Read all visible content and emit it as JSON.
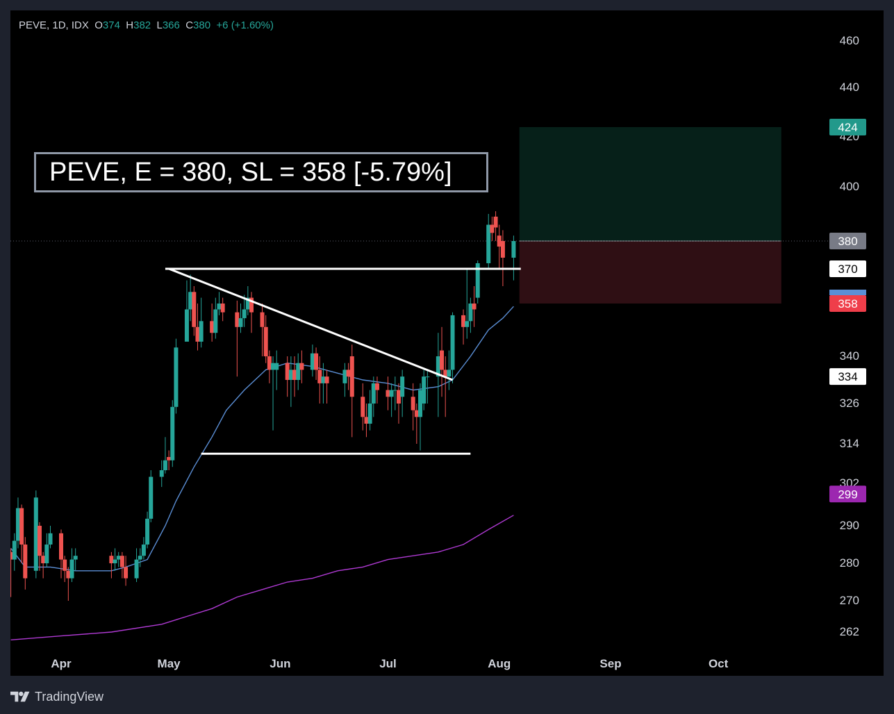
{
  "legend": {
    "symbol": "PEVE, 1D, IDX",
    "o_label": "O",
    "o": "374",
    "h_label": "H",
    "h": "382",
    "l_label": "L",
    "l": "366",
    "c_label": "C",
    "c": "380",
    "change": "+6 (+1.60%)"
  },
  "annotation": "PEVE, E = 380, SL = 358 [-5.79%]",
  "footer": {
    "brand": "TradingView",
    "logo_icon": "tradingview-logo-icon"
  },
  "colors": {
    "up": "#26a69a",
    "down": "#ef5350",
    "ma_short": "#5b8fd6",
    "ma_long": "#b03ad4",
    "target_zone": "#062019",
    "stop_zone": "#2f0f14",
    "background": "#000000"
  },
  "chart_data": {
    "type": "candlestick",
    "symbol": "PEVE",
    "interval": "1D",
    "exchange": "IDX",
    "y_axis_ticks": [
      460,
      440,
      400,
      340,
      326,
      314,
      290,
      280,
      270,
      262
    ],
    "y_axis_overlapped_ticks": [
      "420",
      "302"
    ],
    "x_axis_ticks": [
      "Apr",
      "May",
      "Jun",
      "Jul",
      "Aug",
      "Sep",
      "Oct"
    ],
    "price_labels": [
      {
        "value": "424",
        "color": "#22998b",
        "text_color": "#ffffff"
      },
      {
        "value": "380",
        "color": "#787b86",
        "text_color": "#ffffff"
      },
      {
        "value": "370",
        "color": "#ffffff",
        "text_color": "#000000"
      },
      {
        "value": "358",
        "color": "#ef3e4a",
        "text_color": "#ffffff"
      },
      {
        "value": "334",
        "color": "#ffffff",
        "text_color": "#000000"
      },
      {
        "value": "299",
        "color": "#9c27b0",
        "text_color": "#ffffff"
      }
    ],
    "entry": 380,
    "stop_loss": 358,
    "target": 424,
    "stop_loss_pct": -5.79,
    "resistance": 370,
    "support": 311,
    "descending_trendline": [
      {
        "date": "2024-05-01",
        "price": 370
      },
      {
        "date": "2024-07-19",
        "price": 333
      }
    ],
    "ma_short": [
      {
        "date": "2024-03-18",
        "price": 284
      },
      {
        "date": "2024-03-22",
        "price": 279
      },
      {
        "date": "2024-03-29",
        "price": 279
      },
      {
        "date": "2024-04-05",
        "price": 278
      },
      {
        "date": "2024-04-15",
        "price": 278
      },
      {
        "date": "2024-04-19",
        "price": 279
      },
      {
        "date": "2024-04-25",
        "price": 281
      },
      {
        "date": "2024-04-30",
        "price": 290
      },
      {
        "date": "2024-05-03",
        "price": 297
      },
      {
        "date": "2024-05-08",
        "price": 307
      },
      {
        "date": "2024-05-13",
        "price": 316
      },
      {
        "date": "2024-05-17",
        "price": 324
      },
      {
        "date": "2024-05-22",
        "price": 330
      },
      {
        "date": "2024-05-28",
        "price": 336
      },
      {
        "date": "2024-06-03",
        "price": 338
      },
      {
        "date": "2024-06-10",
        "price": 337
      },
      {
        "date": "2024-06-17",
        "price": 335
      },
      {
        "date": "2024-06-24",
        "price": 333
      },
      {
        "date": "2024-07-01",
        "price": 332
      },
      {
        "date": "2024-07-08",
        "price": 330
      },
      {
        "date": "2024-07-15",
        "price": 331
      },
      {
        "date": "2024-07-19",
        "price": 333
      },
      {
        "date": "2024-07-24",
        "price": 340
      },
      {
        "date": "2024-07-29",
        "price": 349
      },
      {
        "date": "2024-08-02",
        "price": 353
      },
      {
        "date": "2024-08-05",
        "price": 357
      }
    ],
    "ma_long": [
      {
        "date": "2024-03-18",
        "price": 260
      },
      {
        "date": "2024-04-01",
        "price": 261
      },
      {
        "date": "2024-04-15",
        "price": 262
      },
      {
        "date": "2024-04-29",
        "price": 264
      },
      {
        "date": "2024-05-06",
        "price": 266
      },
      {
        "date": "2024-05-13",
        "price": 268
      },
      {
        "date": "2024-05-20",
        "price": 271
      },
      {
        "date": "2024-05-27",
        "price": 273
      },
      {
        "date": "2024-06-03",
        "price": 275
      },
      {
        "date": "2024-06-10",
        "price": 276
      },
      {
        "date": "2024-06-17",
        "price": 278
      },
      {
        "date": "2024-06-24",
        "price": 279
      },
      {
        "date": "2024-07-01",
        "price": 281
      },
      {
        "date": "2024-07-08",
        "price": 282
      },
      {
        "date": "2024-07-15",
        "price": 283
      },
      {
        "date": "2024-07-22",
        "price": 285
      },
      {
        "date": "2024-07-29",
        "price": 289
      },
      {
        "date": "2024-08-05",
        "price": 293
      }
    ],
    "candles": [
      [
        "2024-03-18",
        283,
        281,
        284,
        271
      ],
      [
        "2024-03-19",
        281,
        286,
        288,
        278
      ],
      [
        "2024-03-20",
        286,
        295,
        298,
        284
      ],
      [
        "2024-03-21",
        295,
        285,
        296,
        280
      ],
      [
        "2024-03-22",
        285,
        276,
        287,
        273
      ],
      [
        "2024-03-25",
        278,
        298,
        300,
        276
      ],
      [
        "2024-03-26",
        290,
        282,
        291,
        278
      ],
      [
        "2024-03-27",
        282,
        280,
        283,
        276
      ],
      [
        "2024-03-28",
        280,
        285,
        288,
        279
      ],
      [
        "2024-03-29",
        285,
        288,
        290,
        284
      ],
      [
        "2024-04-01",
        288,
        281,
        289,
        276
      ],
      [
        "2024-04-02",
        281,
        278,
        282,
        275
      ],
      [
        "2024-04-03",
        278,
        276,
        279,
        270
      ],
      [
        "2024-04-04",
        276,
        281,
        284,
        275
      ],
      [
        "2024-04-05",
        281,
        282,
        284,
        278
      ],
      [
        "2024-04-15",
        282,
        280,
        283,
        276
      ],
      [
        "2024-04-16",
        280,
        281,
        284,
        278
      ],
      [
        "2024-04-17",
        281,
        282,
        283,
        279
      ],
      [
        "2024-04-18",
        282,
        279,
        283,
        276
      ],
      [
        "2024-04-19",
        279,
        276,
        282,
        274
      ],
      [
        "2024-04-22",
        276,
        281,
        284,
        275
      ],
      [
        "2024-04-23",
        281,
        282,
        284,
        279
      ],
      [
        "2024-04-24",
        282,
        285,
        287,
        281
      ],
      [
        "2024-04-25",
        285,
        292,
        294,
        284
      ],
      [
        "2024-04-26",
        292,
        304,
        306,
        291
      ],
      [
        "2024-04-29",
        304,
        306,
        309,
        301
      ],
      [
        "2024-04-30",
        306,
        309,
        316,
        305
      ],
      [
        "2024-05-01",
        310,
        309,
        312,
        306
      ],
      [
        "2024-05-02",
        309,
        325,
        327,
        307
      ],
      [
        "2024-05-03",
        325,
        343,
        346,
        323
      ],
      [
        "2024-05-06",
        345,
        356,
        366,
        348
      ],
      [
        "2024-05-07",
        356,
        362,
        368,
        352
      ],
      [
        "2024-05-08",
        362,
        350,
        364,
        347
      ],
      [
        "2024-05-09",
        350,
        345,
        358,
        342
      ],
      [
        "2024-05-10",
        345,
        352,
        360,
        343
      ],
      [
        "2024-05-13",
        352,
        348,
        358,
        345
      ],
      [
        "2024-05-14",
        348,
        356,
        360,
        346
      ],
      [
        "2024-05-15",
        356,
        358,
        362,
        354
      ],
      [
        "2024-05-16",
        358,
        355,
        360,
        352
      ],
      [
        "2024-05-20",
        355,
        350,
        359,
        334
      ],
      [
        "2024-05-21",
        350,
        353,
        358,
        348
      ],
      [
        "2024-05-22",
        353,
        356,
        361,
        350
      ],
      [
        "2024-05-23",
        356,
        360,
        364,
        354
      ],
      [
        "2024-05-24",
        360,
        355,
        362,
        348
      ],
      [
        "2024-05-27",
        355,
        350,
        358,
        340
      ],
      [
        "2024-05-28",
        350,
        340,
        354,
        338
      ],
      [
        "2024-05-29",
        340,
        336,
        342,
        332
      ],
      [
        "2024-05-30",
        336,
        338,
        340,
        318
      ],
      [
        "2024-05-31",
        336,
        338,
        342,
        330
      ],
      [
        "2024-06-03",
        338,
        333,
        340,
        328
      ],
      [
        "2024-06-04",
        333,
        336,
        340,
        325
      ],
      [
        "2024-06-05",
        336,
        333,
        340,
        328
      ],
      [
        "2024-06-06",
        333,
        338,
        341,
        330
      ],
      [
        "2024-06-07",
        338,
        336,
        342,
        332
      ],
      [
        "2024-06-10",
        336,
        341,
        344,
        334
      ],
      [
        "2024-06-11",
        341,
        336,
        343,
        333
      ],
      [
        "2024-06-12",
        336,
        332,
        340,
        326
      ],
      [
        "2024-06-13",
        332,
        334,
        338,
        326
      ],
      [
        "2024-06-14",
        334,
        332,
        336,
        326
      ],
      [
        "2024-06-19",
        332,
        336,
        338,
        328
      ],
      [
        "2024-06-20",
        336,
        334,
        338,
        330
      ],
      [
        "2024-06-21",
        340,
        328,
        344,
        316
      ],
      [
        "2024-06-24",
        328,
        322,
        332,
        318
      ],
      [
        "2024-06-25",
        322,
        320,
        326,
        316
      ],
      [
        "2024-06-26",
        320,
        326,
        330,
        318
      ],
      [
        "2024-06-27",
        326,
        332,
        334,
        322
      ],
      [
        "2024-06-28",
        332,
        330,
        334,
        326
      ],
      [
        "2024-07-01",
        330,
        328,
        334,
        324
      ],
      [
        "2024-07-02",
        328,
        330,
        332,
        322
      ],
      [
        "2024-07-03",
        330,
        330,
        334,
        324
      ],
      [
        "2024-07-04",
        330,
        326,
        332,
        320
      ],
      [
        "2024-07-05",
        328,
        334,
        336,
        322
      ],
      [
        "2024-07-08",
        328,
        324,
        332,
        318
      ],
      [
        "2024-07-09",
        324,
        322,
        326,
        314
      ],
      [
        "2024-07-10",
        322,
        330,
        332,
        312
      ],
      [
        "2024-07-11",
        326,
        334,
        336,
        324
      ],
      [
        "2024-07-12",
        334,
        334,
        336,
        326
      ],
      [
        "2024-07-15",
        334,
        340,
        348,
        322
      ],
      [
        "2024-07-16",
        342,
        336,
        350,
        328
      ],
      [
        "2024-07-17",
        336,
        334,
        340,
        322
      ],
      [
        "2024-07-18",
        334,
        336,
        342,
        330
      ],
      [
        "2024-07-19",
        336,
        354,
        355,
        332
      ],
      [
        "2024-07-22",
        354,
        350,
        356,
        344
      ],
      [
        "2024-07-23",
        350,
        352,
        370,
        346
      ],
      [
        "2024-07-24",
        352,
        358,
        360,
        348
      ],
      [
        "2024-07-25",
        358,
        356,
        364,
        350
      ],
      [
        "2024-07-26",
        360,
        372,
        373,
        358
      ],
      [
        "2024-07-29",
        372,
        386,
        390,
        370
      ],
      [
        "2024-07-30",
        386,
        383,
        389,
        380
      ],
      [
        "2024-07-31",
        389,
        385,
        391,
        380
      ],
      [
        "2024-08-01",
        382,
        378,
        386,
        370
      ],
      [
        "2024-08-02",
        380,
        374,
        384,
        364
      ],
      [
        "2024-08-05",
        374,
        380,
        382,
        366
      ]
    ]
  }
}
